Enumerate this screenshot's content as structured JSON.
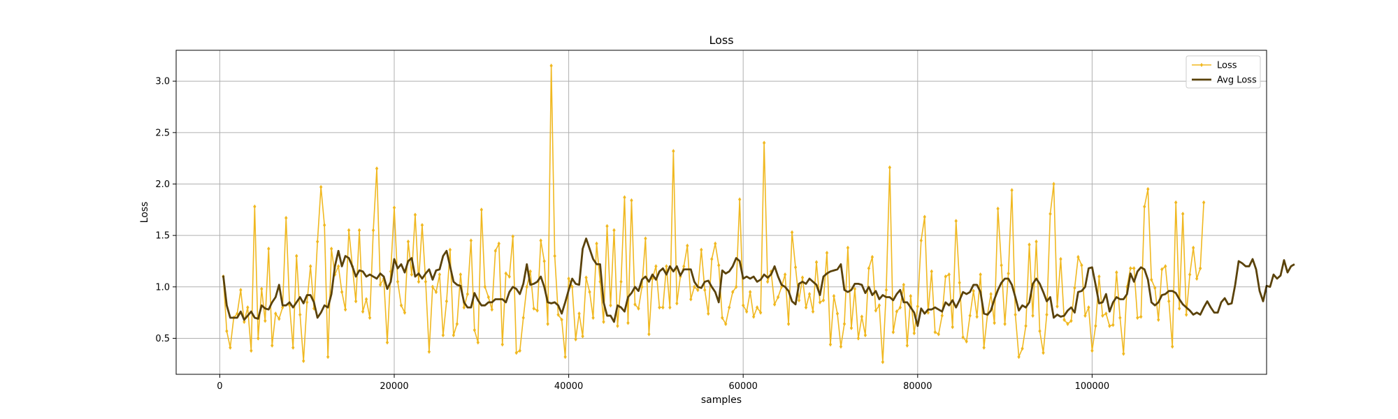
{
  "chart_data": {
    "type": "line",
    "title": "Loss",
    "xlabel": "samples",
    "ylabel": "Loss",
    "xlim": [
      -5000,
      120000
    ],
    "ylim": [
      0.15,
      3.3
    ],
    "xticks": [
      0,
      20000,
      40000,
      60000,
      80000,
      100000
    ],
    "xtick_labels": [
      "0",
      "20000",
      "40000",
      "60000",
      "80000",
      "100000"
    ],
    "yticks": [
      0.5,
      1.0,
      1.5,
      2.0,
      2.5,
      3.0
    ],
    "ytick_labels": [
      "0.5",
      "1.0",
      "1.5",
      "2.0",
      "2.5",
      "3.0"
    ],
    "grid": true,
    "legend_position": "top-right",
    "x_start": 400,
    "x_step": 400,
    "series": [
      {
        "name": "Loss",
        "color": "#f0b820",
        "marker": "diamond",
        "values": [
          1.1,
          0.57,
          0.41,
          0.7,
          0.74,
          0.97,
          0.66,
          0.8,
          0.38,
          1.78,
          0.5,
          0.98,
          0.67,
          1.37,
          0.43,
          0.74,
          0.69,
          0.8,
          1.67,
          0.82,
          0.41,
          1.3,
          0.73,
          0.28,
          0.85,
          1.2,
          0.79,
          1.44,
          1.97,
          1.6,
          0.32,
          1.37,
          1.12,
          1.2,
          0.95,
          0.78,
          1.55,
          1.2,
          0.86,
          1.55,
          0.76,
          0.88,
          0.7,
          1.55,
          2.15,
          1.02,
          1.08,
          0.46,
          1.15,
          1.77,
          1.05,
          0.82,
          0.75,
          1.44,
          1.12,
          1.7,
          1.05,
          1.6,
          1.05,
          0.37,
          1.0,
          0.95,
          1.12,
          0.53,
          0.86,
          1.36,
          0.53,
          0.64,
          1.12,
          0.8,
          0.93,
          1.45,
          0.58,
          0.46,
          1.75,
          1.0,
          0.9,
          0.78,
          1.35,
          1.42,
          0.44,
          1.13,
          1.1,
          1.49,
          0.36,
          0.38,
          0.7,
          1.0,
          1.15,
          0.79,
          0.77,
          1.45,
          1.25,
          0.64,
          3.15,
          1.3,
          0.73,
          0.68,
          0.32,
          1.08,
          1.0,
          0.49,
          0.74,
          0.52,
          1.09,
          0.95,
          0.7,
          1.42,
          1.05,
          0.66,
          1.59,
          0.82,
          1.55,
          0.62,
          1.05,
          1.87,
          0.65,
          1.84,
          0.83,
          0.79,
          1.0,
          1.47,
          0.54,
          1.08,
          1.2,
          0.8,
          0.8,
          1.2,
          0.8,
          2.32,
          0.84,
          1.1,
          1.2,
          1.4,
          0.88,
          1.0,
          0.97,
          1.36,
          0.97,
          0.74,
          1.27,
          1.42,
          1.21,
          0.7,
          0.64,
          0.8,
          0.95,
          1.0,
          1.85,
          0.82,
          0.76,
          0.95,
          0.71,
          0.8,
          0.75,
          2.4,
          1.05,
          1.15,
          0.83,
          0.9,
          1.0,
          1.12,
          0.64,
          1.53,
          1.19,
          0.87,
          1.09,
          0.8,
          0.93,
          0.76,
          1.24,
          0.85,
          0.87,
          1.33,
          0.44,
          0.91,
          0.74,
          0.42,
          0.64,
          1.38,
          0.6,
          0.98,
          0.5,
          0.71,
          0.53,
          1.18,
          1.29,
          0.77,
          0.82,
          0.27,
          0.97,
          2.16,
          0.56,
          0.76,
          0.8,
          1.02,
          0.43,
          0.91,
          0.55,
          0.81,
          1.45,
          1.68,
          0.75,
          1.15,
          0.56,
          0.54,
          0.72,
          1.1,
          1.12,
          0.61,
          1.64,
          1.04,
          0.51,
          0.47,
          0.72,
          0.96,
          0.71,
          1.12,
          0.41,
          0.73,
          0.93,
          0.65,
          1.76,
          1.21,
          0.64,
          1.13,
          1.94,
          0.73,
          0.32,
          0.4,
          0.62,
          1.41,
          0.72,
          1.44,
          0.57,
          0.36,
          0.73,
          1.71,
          2.0,
          0.81,
          1.27,
          0.68,
          0.64,
          0.67,
          0.99,
          1.29,
          1.21,
          0.72,
          0.8,
          0.38,
          0.62,
          1.1,
          0.72,
          0.74,
          0.62,
          0.63,
          1.14,
          0.7,
          0.35,
          1.0,
          1.18,
          1.18,
          0.7,
          0.71,
          1.78,
          1.95,
          1.07,
          0.99,
          0.68,
          1.17,
          1.2,
          0.86,
          0.42,
          1.82,
          0.79,
          1.71,
          0.73,
          1.12,
          1.38,
          1.08,
          1.18,
          1.82
        ]
      },
      {
        "name": "Avg Loss",
        "color": "#5a420a",
        "marker": "none",
        "values": [
          1.11,
          0.82,
          0.7,
          0.7,
          0.7,
          0.76,
          0.68,
          0.72,
          0.76,
          0.7,
          0.69,
          0.82,
          0.79,
          0.78,
          0.85,
          0.9,
          1.02,
          0.82,
          0.82,
          0.85,
          0.8,
          0.85,
          0.9,
          0.84,
          0.92,
          0.92,
          0.85,
          0.7,
          0.75,
          0.82,
          0.8,
          0.93,
          1.2,
          1.35,
          1.2,
          1.3,
          1.28,
          1.2,
          1.1,
          1.16,
          1.15,
          1.1,
          1.12,
          1.1,
          1.08,
          1.13,
          1.1,
          0.98,
          1.05,
          1.27,
          1.18,
          1.22,
          1.14,
          1.25,
          1.28,
          1.1,
          1.13,
          1.08,
          1.13,
          1.17,
          1.07,
          1.16,
          1.17,
          1.3,
          1.35,
          1.2,
          1.05,
          1.02,
          1.01,
          0.85,
          0.8,
          0.8,
          0.94,
          0.87,
          0.82,
          0.82,
          0.85,
          0.85,
          0.88,
          0.88,
          0.88,
          0.85,
          0.95,
          1.0,
          0.98,
          0.93,
          1.03,
          1.22,
          1.02,
          1.03,
          1.05,
          1.1,
          1.0,
          0.85,
          0.84,
          0.85,
          0.82,
          0.74,
          0.85,
          0.97,
          1.08,
          1.03,
          1.02,
          1.37,
          1.47,
          1.37,
          1.27,
          1.22,
          1.22,
          0.85,
          0.72,
          0.72,
          0.66,
          0.82,
          0.8,
          0.76,
          0.9,
          0.94,
          1.0,
          0.96,
          1.07,
          1.1,
          1.05,
          1.12,
          1.07,
          1.15,
          1.18,
          1.12,
          1.2,
          1.15,
          1.2,
          1.11,
          1.17,
          1.17,
          1.17,
          1.05,
          1.0,
          0.99,
          1.05,
          1.06,
          1.0,
          0.95,
          0.85,
          1.16,
          1.13,
          1.15,
          1.2,
          1.28,
          1.25,
          1.08,
          1.1,
          1.08,
          1.1,
          1.05,
          1.07,
          1.12,
          1.09,
          1.12,
          1.2,
          1.1,
          1.02,
          1.0,
          0.96,
          0.86,
          0.83,
          1.03,
          1.05,
          1.03,
          1.08,
          1.05,
          1.02,
          0.92,
          1.1,
          1.13,
          1.15,
          1.16,
          1.17,
          1.22,
          0.97,
          0.95,
          0.97,
          1.03,
          1.03,
          1.02,
          0.94,
          1.0,
          0.92,
          0.96,
          0.88,
          0.92,
          0.9,
          0.9,
          0.87,
          0.93,
          0.97,
          0.85,
          0.85,
          0.8,
          0.75,
          0.62,
          0.79,
          0.74,
          0.78,
          0.78,
          0.8,
          0.78,
          0.76,
          0.85,
          0.82,
          0.87,
          0.8,
          0.87,
          0.95,
          0.93,
          0.95,
          1.02,
          1.02,
          0.95,
          0.74,
          0.73,
          0.77,
          0.88,
          0.97,
          1.04,
          1.08,
          1.08,
          1.02,
          0.9,
          0.77,
          0.82,
          0.8,
          0.85,
          1.03,
          1.08,
          1.03,
          0.95,
          0.86,
          0.9,
          0.7,
          0.73,
          0.71,
          0.72,
          0.77,
          0.8,
          0.75,
          0.95,
          0.96,
          1.0,
          1.18,
          1.19,
          1.02,
          0.84,
          0.85,
          0.93,
          0.76,
          0.85,
          0.9,
          0.88,
          0.88,
          0.93,
          1.13,
          1.05,
          1.15,
          1.19,
          1.17,
          1.07,
          0.85,
          0.82,
          0.85,
          0.92,
          0.93,
          0.96,
          0.96,
          0.94,
          0.88,
          0.83,
          0.8,
          0.77,
          0.73,
          0.75,
          0.73,
          0.8,
          0.86,
          0.8,
          0.75,
          0.75,
          0.85,
          0.89,
          0.83,
          0.84,
          1.02,
          1.25,
          1.23,
          1.2,
          1.2,
          1.27,
          1.17,
          0.96,
          0.86,
          1.01,
          1.0,
          1.12,
          1.08,
          1.11,
          1.26,
          1.14,
          1.2,
          1.22
        ]
      }
    ]
  }
}
